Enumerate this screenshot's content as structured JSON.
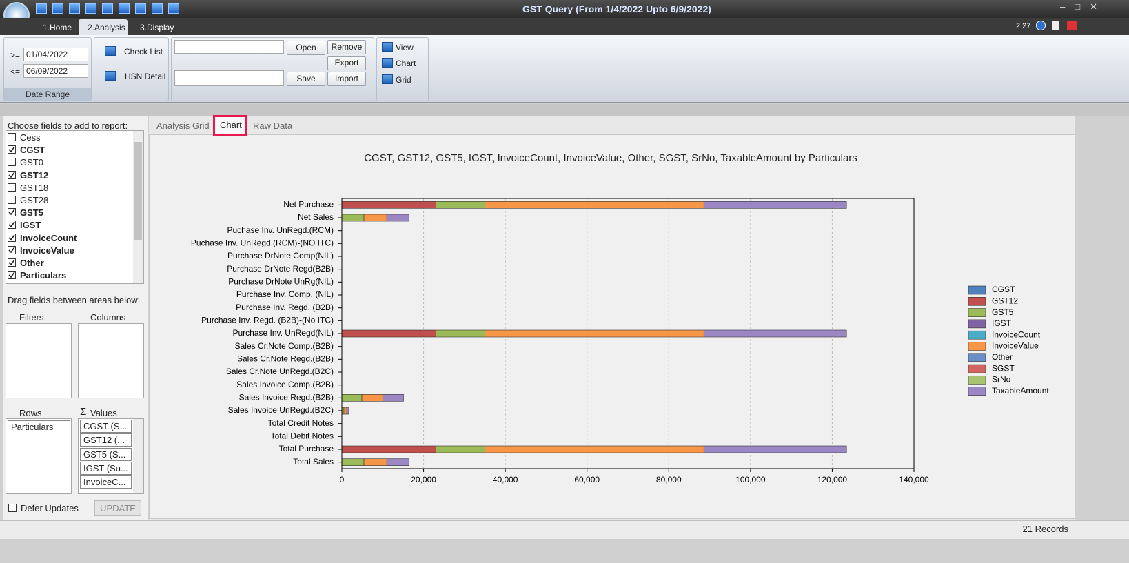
{
  "window": {
    "title": "GST Query (From 1/4/2022 Upto 6/9/2022)",
    "tabs": [
      "1.Home",
      "2.Analysis",
      "3.Display"
    ],
    "version": "2.27"
  },
  "ribbon": {
    "from_op": ">=",
    "from_date": "01/04/2022",
    "to_op": "<=",
    "to_date": "06/09/2022",
    "date_group": "Date Range",
    "check_list": "Check List",
    "hsn_detail": "HSN Detail",
    "open": "Open",
    "remove": "Remove",
    "export": "Export",
    "save": "Save",
    "import": "Import",
    "view": "View",
    "chart": "Chart",
    "grid": "Grid"
  },
  "field_list": {
    "prompt": "Choose fields to add to report:",
    "fields": [
      {
        "name": "Cess",
        "checked": false
      },
      {
        "name": "CGST",
        "checked": true
      },
      {
        "name": "GST0",
        "checked": false
      },
      {
        "name": "GST12",
        "checked": true
      },
      {
        "name": "GST18",
        "checked": false
      },
      {
        "name": "GST28",
        "checked": false
      },
      {
        "name": "GST5",
        "checked": true
      },
      {
        "name": "IGST",
        "checked": true
      },
      {
        "name": "InvoiceCount",
        "checked": true
      },
      {
        "name": "InvoiceValue",
        "checked": true
      },
      {
        "name": "Other",
        "checked": true
      },
      {
        "name": "Particulars",
        "checked": true
      }
    ],
    "drag_prompt": "Drag fields between areas below:",
    "filters": "Filters",
    "columns": "Columns",
    "rows": "Rows",
    "values": "Values",
    "row_items": [
      "Particulars"
    ],
    "value_items": [
      "CGST (S...",
      "GST12 (...",
      "GST5 (S...",
      "IGST (Su...",
      "InvoiceC..."
    ],
    "defer": "Defer Updates",
    "update": "UPDATE"
  },
  "view_tabs": [
    "Analysis Grid",
    "Chart",
    "Raw Data"
  ],
  "status": "21 Records",
  "chart_data": {
    "type": "bar",
    "orientation": "horizontal",
    "stacked": true,
    "title": "CGST, GST12, GST5, IGST, InvoiceCount, InvoiceValue, Other, SGST, SrNo, TaxableAmount by Particulars",
    "categories": [
      "Net Purchase",
      "Net Sales",
      "Puchase Inv. UnRegd.(RCM)",
      "Puchase Inv. UnRegd.(RCM)-(NO ITC)",
      "Purchase DrNote Comp(NIL)",
      "Purchase DrNote Regd(B2B)",
      "Purchase DrNote UnRg(NIL)",
      "Purchase Inv. Comp. (NIL)",
      "Purchase Inv. Regd. (B2B)",
      "Purchase Inv. Regd. (B2B)-(No ITC)",
      "Purchase Inv. UnRegd(NIL)",
      "Sales Cr.Note Comp.(B2B)",
      "Sales Cr.Note Regd.(B2B)",
      "Sales Cr.Note UnRegd.(B2C)",
      "Sales Invoice Comp.(B2B)",
      "Sales Invoice Regd.(B2B)",
      "Sales Invoice UnRegd.(B2C)",
      "Total Credit Notes",
      "Total Debit Notes",
      "Total Purchase",
      "Total Sales"
    ],
    "series": [
      {
        "name": "CGST",
        "color": "#4f81bd",
        "values": [
          0,
          0,
          0,
          0,
          0,
          0,
          0,
          0,
          0,
          0,
          0,
          0,
          0,
          0,
          0,
          0,
          0,
          0,
          0,
          0,
          0
        ]
      },
      {
        "name": "GST12",
        "color": "#c0504d",
        "values": [
          23000,
          0,
          0,
          0,
          0,
          0,
          0,
          0,
          0,
          0,
          23000,
          0,
          0,
          0,
          0,
          0,
          0,
          0,
          0,
          23000,
          0
        ]
      },
      {
        "name": "GST5",
        "color": "#9bbb59",
        "values": [
          12000,
          5400,
          0,
          0,
          0,
          0,
          0,
          0,
          0,
          0,
          12000,
          0,
          0,
          0,
          0,
          4900,
          500,
          0,
          0,
          12000,
          5400
        ]
      },
      {
        "name": "IGST",
        "color": "#8064a2",
        "values": [
          0,
          0,
          0,
          0,
          0,
          0,
          0,
          0,
          0,
          0,
          0,
          0,
          0,
          0,
          0,
          0,
          0,
          0,
          0,
          0,
          0
        ]
      },
      {
        "name": "InvoiceCount",
        "color": "#4bacc6",
        "values": [
          0,
          0,
          0,
          0,
          0,
          0,
          0,
          0,
          0,
          0,
          0,
          0,
          0,
          0,
          0,
          0,
          0,
          0,
          0,
          0,
          0
        ]
      },
      {
        "name": "InvoiceValue",
        "color": "#f79646",
        "values": [
          53600,
          5600,
          0,
          0,
          0,
          0,
          0,
          0,
          0,
          0,
          53600,
          0,
          0,
          0,
          0,
          5100,
          700,
          0,
          0,
          53600,
          5600
        ]
      },
      {
        "name": "Other",
        "color": "#6a8fc7",
        "values": [
          0,
          0,
          0,
          0,
          0,
          0,
          0,
          0,
          0,
          0,
          0,
          0,
          0,
          0,
          0,
          0,
          0,
          0,
          0,
          0,
          0
        ]
      },
      {
        "name": "SGST",
        "color": "#d0665f",
        "values": [
          0,
          0,
          0,
          0,
          0,
          0,
          0,
          0,
          0,
          0,
          0,
          0,
          0,
          0,
          0,
          0,
          0,
          0,
          0,
          0,
          0
        ]
      },
      {
        "name": "SrNo",
        "color": "#a9c46f",
        "values": [
          0,
          0,
          0,
          0,
          0,
          0,
          0,
          0,
          0,
          0,
          0,
          0,
          0,
          0,
          0,
          0,
          0,
          0,
          0,
          0,
          0
        ]
      },
      {
        "name": "TaxableAmount",
        "color": "#9b87c4",
        "values": [
          34900,
          5400,
          0,
          0,
          0,
          0,
          0,
          0,
          0,
          0,
          34900,
          0,
          0,
          0,
          0,
          5100,
          500,
          0,
          0,
          34900,
          5400
        ]
      }
    ],
    "xlim": [
      0,
      140000
    ],
    "xticks": [
      0,
      {
        "value": 20000,
        "label": "20,000"
      },
      {
        "value": 40000,
        "label": "40,000"
      },
      {
        "value": 60000,
        "label": "60,000"
      },
      {
        "value": 80000,
        "label": "80,000"
      },
      {
        "value": 100000,
        "label": "100,000"
      },
      {
        "value": 120000,
        "label": "120,000"
      },
      {
        "value": 140000,
        "label": "140,000"
      }
    ],
    "grid": true,
    "legend": "right"
  }
}
